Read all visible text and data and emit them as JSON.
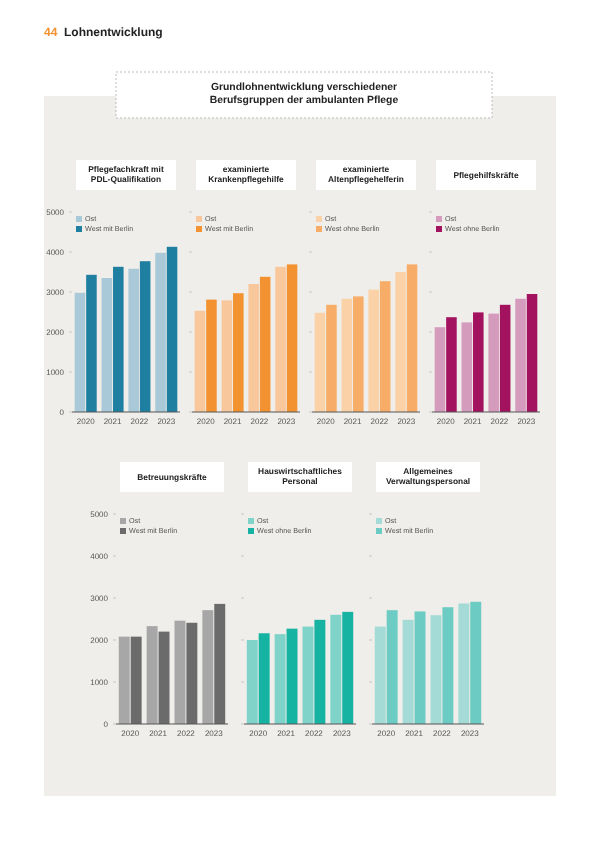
{
  "chart_data": [
    {
      "type": "other",
      "title": "Grundlohnentwicklung verschiedener Berufsgruppen der ambulanten Pflege",
      "annotations": [
        "44",
        "Lohnentwicklung"
      ]
    },
    {
      "type": "bar",
      "title": "Pflegefachkraft mit PDL-Qualifikation",
      "categories": [
        "2020",
        "2021",
        "2022",
        "2023"
      ],
      "series": [
        {
          "name": "Ost",
          "color": "#a9c8d8",
          "values": [
            2980,
            3350,
            3580,
            3980
          ]
        },
        {
          "name": "West mit Berlin",
          "color": "#1f7fa0",
          "values": [
            3430,
            3630,
            3770,
            4130
          ]
        }
      ],
      "ylim": [
        0,
        5000
      ],
      "yticks": [
        0,
        1000,
        2000,
        3000,
        4000,
        5000
      ],
      "legend": "top left"
    },
    {
      "type": "bar",
      "title": "examinierte Krankenpflegehilfe",
      "categories": [
        "2020",
        "2021",
        "2022",
        "2023"
      ],
      "series": [
        {
          "name": "Ost",
          "color": "#f8c79c",
          "values": [
            2530,
            2790,
            3200,
            3630
          ]
        },
        {
          "name": "West mit Berlin",
          "color": "#f39230",
          "values": [
            2810,
            2970,
            3380,
            3690
          ]
        }
      ],
      "ylim": [
        0,
        5000
      ],
      "yticks": [
        0,
        1000,
        2000,
        3000,
        4000,
        5000
      ],
      "legend": "top left",
      "tick_labels": "x"
    },
    {
      "type": "bar",
      "title": "examinierte Altenpflegehelferin",
      "categories": [
        "2020",
        "2021",
        "2022",
        "2023"
      ],
      "series": [
        {
          "name": "Ost",
          "color": "#fbd2a8",
          "values": [
            2480,
            2830,
            3060,
            3500
          ]
        },
        {
          "name": "West ohne Berlin",
          "color": "#f7ad68",
          "values": [
            2680,
            2890,
            3270,
            3690
          ]
        }
      ],
      "ylim": [
        0,
        5000
      ],
      "yticks": [
        0,
        1000,
        2000,
        3000,
        4000,
        5000
      ],
      "legend": "top left",
      "tick_labels": "x"
    },
    {
      "type": "bar",
      "title": "Pflegehilfskräfte",
      "categories": [
        "2020",
        "2021",
        "2022",
        "2023"
      ],
      "series": [
        {
          "name": "Ost",
          "color": "#d59bbd",
          "values": [
            2120,
            2240,
            2460,
            2830
          ]
        },
        {
          "name": "West ohne Berlin",
          "color": "#a3125f",
          "values": [
            2370,
            2490,
            2680,
            2950
          ]
        }
      ],
      "ylim": [
        0,
        5000
      ],
      "yticks": [
        0,
        1000,
        2000,
        3000,
        4000,
        5000
      ],
      "legend": "top left",
      "tick_labels": "x"
    },
    {
      "type": "bar",
      "title": "Betreuungskräfte",
      "categories": [
        "2020",
        "2021",
        "2022",
        "2023"
      ],
      "series": [
        {
          "name": "Ost",
          "color": "#a7a7a7",
          "values": [
            2080,
            2330,
            2460,
            2710
          ]
        },
        {
          "name": "West mit Berlin",
          "color": "#6b6b6b",
          "values": [
            2080,
            2200,
            2410,
            2860
          ]
        }
      ],
      "ylim": [
        0,
        5000
      ],
      "yticks": [
        0,
        1000,
        2000,
        3000,
        4000,
        5000
      ],
      "legend": "top left"
    },
    {
      "type": "bar",
      "title": "Hauswirtschaftliches Personal",
      "categories": [
        "2020",
        "2021",
        "2022",
        "2023"
      ],
      "series": [
        {
          "name": "Ost",
          "color": "#7fd3c9",
          "values": [
            2000,
            2140,
            2320,
            2600
          ]
        },
        {
          "name": "West ohne Berlin",
          "color": "#16b2a2",
          "values": [
            2160,
            2270,
            2480,
            2670
          ]
        }
      ],
      "ylim": [
        0,
        5000
      ],
      "yticks": [
        0,
        1000,
        2000,
        3000,
        4000,
        5000
      ],
      "legend": "top left",
      "tick_labels": "x"
    },
    {
      "type": "bar",
      "title": "Allgemeines Verwaltungspersonal",
      "categories": [
        "2020",
        "2021",
        "2022",
        "2023"
      ],
      "series": [
        {
          "name": "Ost",
          "color": "#a4dbd6",
          "values": [
            2320,
            2480,
            2590,
            2870
          ]
        },
        {
          "name": "West mit Berlin",
          "color": "#6ccbc2",
          "values": [
            2710,
            2680,
            2780,
            2910
          ]
        }
      ],
      "ylim": [
        0,
        5000
      ],
      "yticks": [
        0,
        1000,
        2000,
        3000,
        4000,
        5000
      ],
      "legend": "top left",
      "tick_labels": "x"
    }
  ]
}
